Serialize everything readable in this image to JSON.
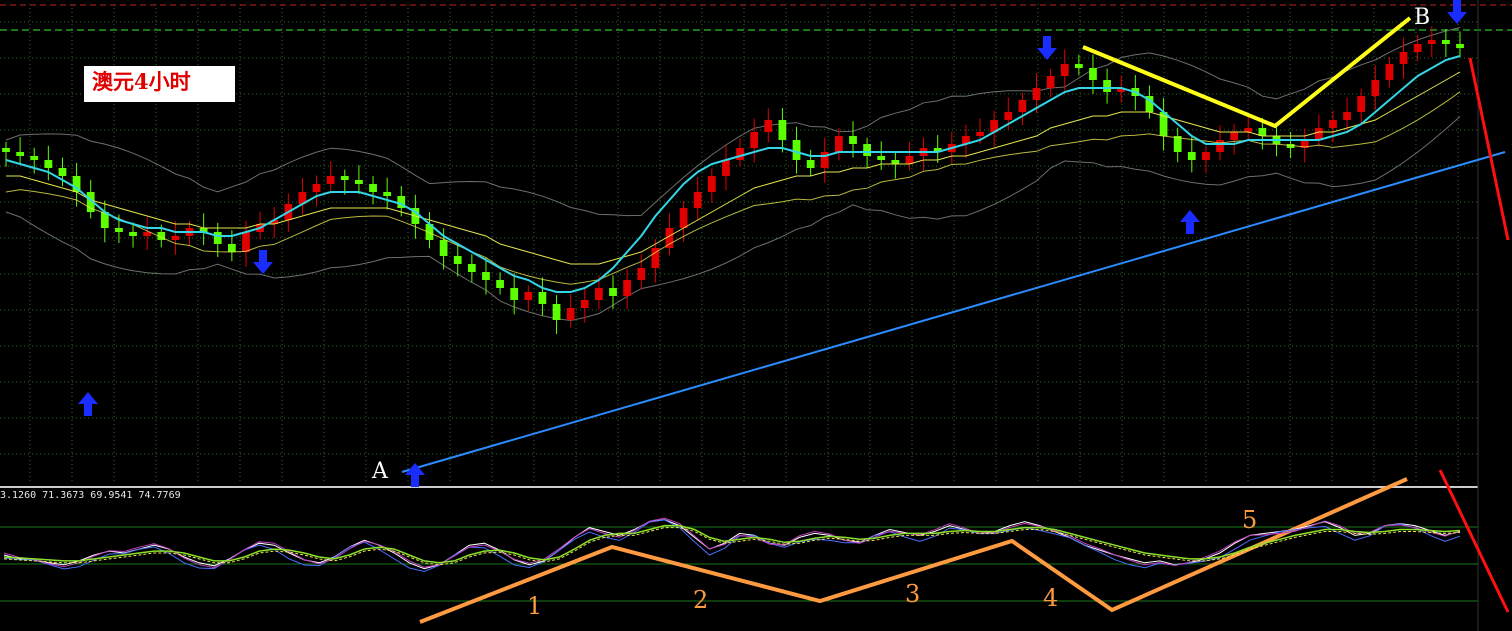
{
  "title": "澳元4小时",
  "indicator_readout": "3.1260 71.3673 69.9541 74.7769",
  "points": {
    "a": "A",
    "b": "B"
  },
  "wave_labels": [
    "1",
    "2",
    "3",
    "4",
    "5"
  ],
  "colors": {
    "background": "#000000",
    "bull_candle": "#e00000",
    "bear_candle": "#5cff00",
    "ma_fast": "#33d6e6",
    "ma_mid": "#e6e64d",
    "bollinger": "#6e6e6e",
    "trendline": "#2a8cff",
    "yellow_line": "#ffff1a",
    "wave_line": "#ff9a40",
    "red_line": "#ff1010",
    "arrow": "#1a2cff",
    "grid_dot": "#2a6b2a",
    "resistance": "#22a022",
    "top_dashed": "#c02020"
  },
  "icons": {
    "buy": "blue-up-arrow-icon",
    "sell": "blue-down-arrow-icon"
  },
  "chart_data": [
    {
      "type": "candlestick",
      "title": "",
      "xlabel": "",
      "ylabel": "",
      "ylim": [
        0,
        100
      ],
      "grid": true,
      "series": [
        {
          "name": "",
          "kind": "close",
          "values": [
            72,
            71,
            70,
            68,
            66,
            62,
            57,
            53,
            52,
            51,
            52,
            50,
            51,
            53,
            52,
            49,
            47,
            52,
            54,
            55,
            59,
            62,
            64,
            66,
            65,
            64,
            62,
            61,
            58,
            54,
            50,
            46,
            44,
            42,
            40,
            38,
            35,
            37,
            34,
            30,
            33,
            35,
            38,
            36,
            40,
            43,
            48,
            53,
            58,
            62,
            66,
            70,
            73,
            77,
            80,
            75,
            70,
            68,
            72,
            76,
            74,
            71,
            70,
            69,
            71,
            73,
            72,
            74,
            76,
            77,
            80,
            82,
            85,
            88,
            91,
            94,
            93,
            90,
            87,
            88,
            86,
            82,
            76,
            72,
            70,
            72,
            75,
            77,
            78,
            76,
            74,
            73,
            75,
            78,
            80,
            82,
            86,
            90,
            94,
            97,
            99,
            100,
            99,
            98
          ]
        },
        {
          "name": "",
          "kind": "ma_fast",
          "values": [
            70,
            69,
            68,
            67,
            65,
            63,
            60,
            57,
            55,
            54,
            53,
            53,
            52,
            52,
            52,
            51,
            51,
            52,
            53,
            55,
            57,
            59,
            61,
            62,
            62,
            62,
            61,
            60,
            59,
            57,
            54,
            51,
            49,
            47,
            45,
            43,
            41,
            40,
            38,
            37,
            37,
            38,
            40,
            43,
            47,
            51,
            56,
            60,
            64,
            67,
            69,
            70,
            71,
            72,
            73,
            73,
            72,
            71,
            71,
            72,
            72,
            72,
            72,
            72,
            72,
            72,
            72,
            73,
            74,
            75,
            77,
            79,
            81,
            83,
            85,
            87,
            88,
            88,
            88,
            88,
            87,
            85,
            82,
            79,
            76,
            74,
            74,
            74,
            75,
            75,
            75,
            75,
            75,
            75,
            76,
            77,
            79,
            82,
            85,
            88,
            91,
            93,
            95,
            96
          ]
        },
        {
          "name": "",
          "kind": "ma_slow",
          "values": [
            66,
            66,
            65,
            64,
            63,
            62,
            60,
            59,
            58,
            57,
            56,
            55,
            54,
            54,
            53,
            53,
            53,
            53,
            54,
            54,
            55,
            56,
            57,
            58,
            58,
            58,
            58,
            58,
            57,
            56,
            55,
            54,
            53,
            52,
            51,
            49,
            48,
            47,
            46,
            45,
            44,
            44,
            44,
            45,
            46,
            47,
            49,
            51,
            53,
            55,
            57,
            59,
            61,
            63,
            64,
            65,
            66,
            66,
            67,
            67,
            68,
            68,
            69,
            69,
            69,
            70,
            70,
            71,
            71,
            72,
            73,
            74,
            75,
            76,
            78,
            79,
            80,
            81,
            81,
            82,
            82,
            82,
            81,
            80,
            79,
            78,
            77,
            77,
            77,
            76,
            76,
            76,
            76,
            77,
            77,
            78,
            79,
            80,
            82,
            84,
            86,
            88,
            90,
            92
          ]
        }
      ]
    },
    {
      "type": "line",
      "title": "",
      "xlabel": "",
      "ylabel": "",
      "ylim": [
        0,
        100
      ],
      "series": [
        {
          "name": "",
          "values": [
            50,
            46,
            45,
            42,
            40,
            44,
            50,
            54,
            52,
            56,
            60,
            56,
            48,
            42,
            39,
            46,
            55,
            62,
            60,
            52,
            45,
            42,
            48,
            58,
            65,
            60,
            52,
            42,
            36,
            40,
            50,
            60,
            62,
            55,
            45,
            40,
            44,
            55,
            68,
            78,
            74,
            70,
            76,
            84,
            86,
            80,
            68,
            56,
            62,
            72,
            70,
            62,
            60,
            68,
            72,
            70,
            65,
            63,
            70,
            76,
            73,
            70,
            74,
            80,
            76,
            72,
            74,
            80,
            84,
            80,
            74,
            68,
            60,
            55,
            50,
            46,
            42,
            44,
            40,
            42,
            46,
            52,
            62,
            70,
            72,
            74,
            76,
            80,
            84,
            78,
            70,
            72,
            80,
            82,
            80,
            75,
            70,
            74
          ]
        },
        {
          "name": "",
          "values": [
            48,
            47,
            46,
            45,
            44,
            44,
            46,
            48,
            50,
            52,
            54,
            54,
            52,
            48,
            44,
            44,
            48,
            54,
            56,
            55,
            52,
            48,
            46,
            50,
            56,
            58,
            56,
            50,
            44,
            42,
            44,
            50,
            54,
            55,
            52,
            47,
            45,
            48,
            56,
            65,
            70,
            72,
            72,
            76,
            80,
            80,
            76,
            68,
            64,
            66,
            68,
            66,
            63,
            64,
            67,
            69,
            68,
            66,
            67,
            70,
            72,
            72,
            72,
            74,
            75,
            74,
            74,
            76,
            78,
            78,
            76,
            72,
            68,
            64,
            60,
            56,
            52,
            50,
            48,
            46,
            46,
            48,
            52,
            58,
            62,
            66,
            70,
            73,
            76,
            76,
            74,
            73,
            74,
            76,
            76,
            75,
            74,
            75
          ]
        }
      ]
    }
  ]
}
